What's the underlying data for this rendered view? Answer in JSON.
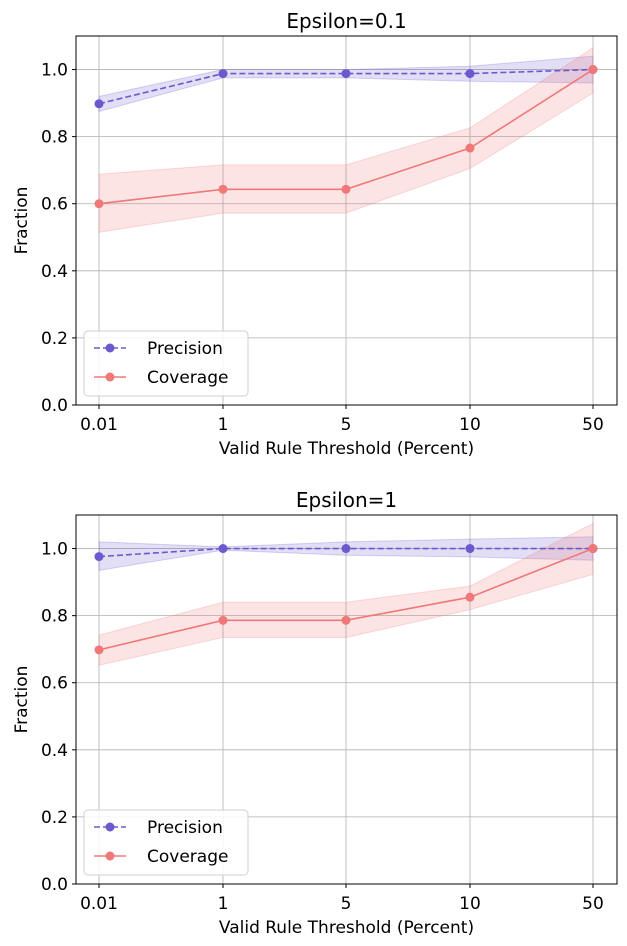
{
  "chart_data": [
    {
      "type": "line",
      "title": "Epsilon=0.1",
      "xlabel": "Valid Rule Threshold (Percent)",
      "ylabel": "Fraction",
      "categories": [
        "0.01",
        "1",
        "5",
        "10",
        "50"
      ],
      "ylim": [
        0,
        1.1
      ],
      "yticks": [
        "0.0",
        "0.2",
        "0.4",
        "0.6",
        "0.8",
        "1.0"
      ],
      "grid": true,
      "legend_position": "bottom-left",
      "series": [
        {
          "name": "Precision",
          "color": "#6a5acd",
          "linestyle": "dashed",
          "marker": "circle",
          "values": [
            0.898,
            0.988,
            0.988,
            0.988,
            1.0
          ],
          "band_lower": [
            0.875,
            0.975,
            0.975,
            0.965,
            0.96
          ],
          "band_upper": [
            0.92,
            1.0,
            1.0,
            1.01,
            1.04
          ]
        },
        {
          "name": "Coverage",
          "color": "#f07878",
          "linestyle": "solid",
          "marker": "circle",
          "values": [
            0.6,
            0.643,
            0.643,
            0.766,
            1.0
          ],
          "band_lower": [
            0.515,
            0.572,
            0.572,
            0.705,
            0.93
          ],
          "band_upper": [
            0.688,
            0.716,
            0.716,
            0.826,
            1.065
          ]
        }
      ]
    },
    {
      "type": "line",
      "title": "Epsilon=1",
      "xlabel": "Valid Rule Threshold (Percent)",
      "ylabel": "Fraction",
      "categories": [
        "0.01",
        "1",
        "5",
        "10",
        "50"
      ],
      "ylim": [
        0,
        1.1
      ],
      "yticks": [
        "0.0",
        "0.2",
        "0.4",
        "0.6",
        "0.8",
        "1.0"
      ],
      "grid": true,
      "legend_position": "bottom-left",
      "series": [
        {
          "name": "Precision",
          "color": "#6a5acd",
          "linestyle": "dashed",
          "marker": "circle",
          "values": [
            0.976,
            1.0,
            1.0,
            1.0,
            1.0
          ],
          "band_lower": [
            0.935,
            0.995,
            0.98,
            0.975,
            0.965
          ],
          "band_upper": [
            1.02,
            1.005,
            1.02,
            1.028,
            1.035
          ]
        },
        {
          "name": "Coverage",
          "color": "#f07878",
          "linestyle": "solid",
          "marker": "circle",
          "values": [
            0.698,
            0.786,
            0.786,
            0.855,
            1.0
          ],
          "band_lower": [
            0.652,
            0.735,
            0.735,
            0.818,
            0.923
          ],
          "band_upper": [
            0.742,
            0.84,
            0.84,
            0.888,
            1.075
          ]
        }
      ]
    }
  ]
}
